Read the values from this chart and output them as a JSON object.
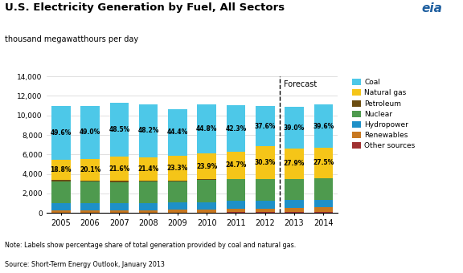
{
  "years": [
    "2005",
    "2006",
    "2007",
    "2008",
    "2009",
    "2010",
    "2011",
    "2012",
    "2013",
    "2014"
  ],
  "coal": [
    5500,
    5445,
    5560,
    5430,
    4840,
    5020,
    4760,
    4130,
    4290,
    4440
  ],
  "natural_gas": [
    2085,
    2235,
    2480,
    2405,
    2535,
    2685,
    2775,
    3330,
    3070,
    3085
  ],
  "petroleum": [
    130,
    115,
    105,
    95,
    70,
    65,
    55,
    50,
    50,
    50
  ],
  "nuclear": [
    2230,
    2200,
    2200,
    2230,
    2180,
    2250,
    2215,
    2220,
    2150,
    2200
  ],
  "hydropower": [
    770,
    740,
    690,
    680,
    720,
    760,
    820,
    780,
    800,
    790
  ],
  "renewables": [
    200,
    215,
    225,
    240,
    280,
    310,
    350,
    380,
    450,
    490
  ],
  "other_sources": [
    50,
    50,
    55,
    55,
    55,
    55,
    60,
    60,
    65,
    65
  ],
  "coal_pct": [
    "49.6%",
    "49.0%",
    "48.5%",
    "48.2%",
    "44.4%",
    "44.8%",
    "42.3%",
    "37.6%",
    "39.0%",
    "39.6%"
  ],
  "ng_pct": [
    "18.8%",
    "20.1%",
    "21.6%",
    "21.4%",
    "23.3%",
    "23.9%",
    "24.7%",
    "30.3%",
    "27.9%",
    "27.5%"
  ],
  "colors": {
    "coal": "#4DC8E8",
    "natural_gas": "#F5C518",
    "petroleum": "#6B4C10",
    "nuclear": "#4E9A4E",
    "hydropower": "#1E90C8",
    "renewables": "#C87820",
    "other_sources": "#A03030"
  },
  "title": "U.S. Electricity Generation by Fuel, All Sectors",
  "subtitle": "thousand megawatthours per day",
  "ylim": [
    0,
    14000
  ],
  "yticks": [
    0,
    2000,
    4000,
    6000,
    8000,
    10000,
    12000,
    14000
  ],
  "forecast_after": 7,
  "note": "Note: Labels show percentage share of total generation provided by coal and natural gas.",
  "source": "Source: Short-Term Energy Outlook, January 2013"
}
